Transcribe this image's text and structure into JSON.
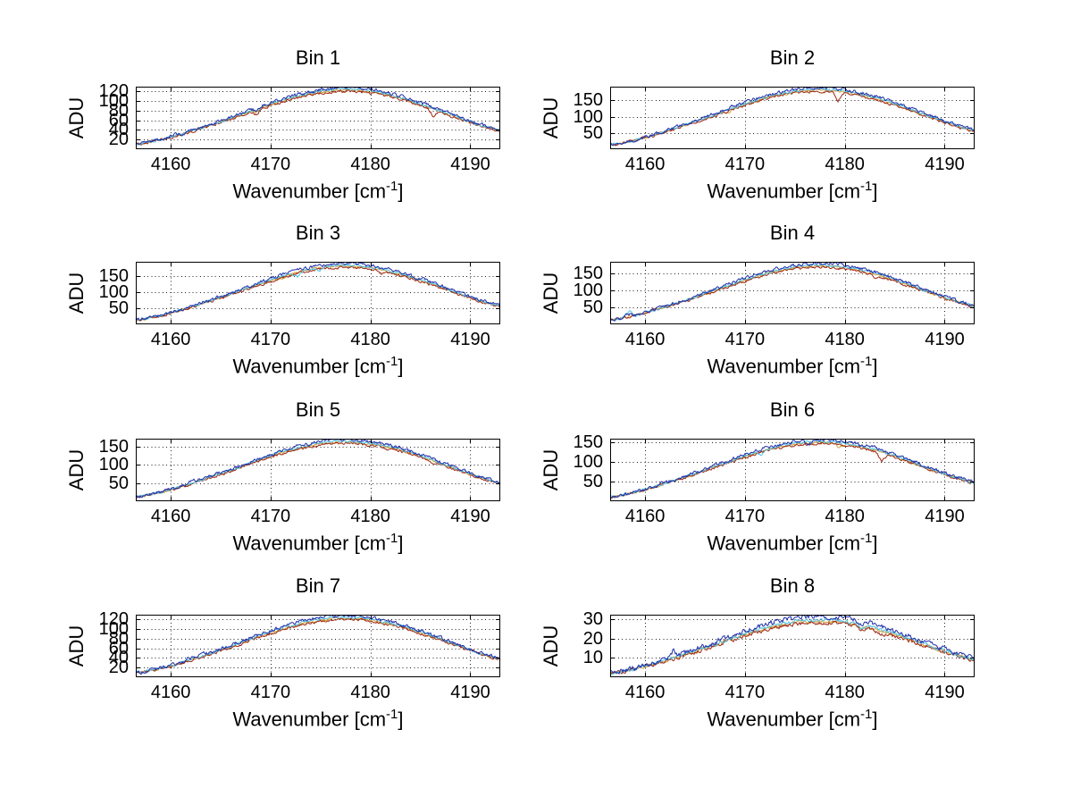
{
  "figure": {
    "background": "#ffffff",
    "text_color": "#000000",
    "axis_color": "#000000",
    "grid_style": "dotted"
  },
  "series_info": [
    {
      "name": "yellow",
      "color": "#d2a038"
    },
    {
      "name": "dark-red",
      "color": "#9e2712"
    },
    {
      "name": "cyan",
      "color": "#52c4e4"
    },
    {
      "name": "blue",
      "color": "#1e2ea8"
    }
  ],
  "default_series_scales": [
    0.982,
    0.963,
    1.0,
    1.028
  ],
  "chart_data": [
    {
      "type": "line",
      "title": "Bin 1",
      "ylabel": "ADU",
      "xlabel": "Wavenumber [cm^-1]",
      "xlabel_main": "Wavenumber [cm",
      "xlabel_sup": "-1",
      "xlabel_end": "]",
      "xlim": [
        4156.5,
        4193
      ],
      "ylim": [
        0,
        130
      ],
      "xticks": [
        4160,
        4170,
        4180,
        4190
      ],
      "yticks": [
        20,
        40,
        60,
        80,
        100,
        120
      ],
      "peak_adu": 125,
      "peak_center": 4177.5,
      "x": [
        4157,
        4159,
        4161,
        4163,
        4165,
        4167,
        4169,
        4171,
        4173,
        4175,
        4177,
        4179,
        4181,
        4183,
        4185,
        4187,
        4189,
        4191,
        4193
      ],
      "y": [
        11,
        20,
        31,
        44,
        57,
        72,
        87,
        101,
        113,
        121,
        125,
        124,
        118,
        108,
        94,
        80,
        65,
        50,
        38
      ],
      "spikes": [
        {
          "x": 4168.6,
          "series": "all",
          "dy": -5
        },
        {
          "x": 4168.6,
          "series": "dark-red",
          "dy": -5
        },
        {
          "x": 4186.3,
          "series": "dark-red",
          "dy": -13
        },
        {
          "x": 4160.3,
          "series": "blue",
          "dy": 3
        }
      ]
    },
    {
      "type": "line",
      "title": "Bin 2",
      "ylabel": "ADU",
      "xlabel": "Wavenumber [cm^-1]",
      "xlabel_main": "Wavenumber [cm",
      "xlabel_sup": "-1",
      "xlabel_end": "]",
      "xlim": [
        4156.5,
        4193
      ],
      "ylim": [
        0,
        192
      ],
      "xticks": [
        4160,
        4170,
        4180,
        4190
      ],
      "yticks": [
        50,
        100,
        150
      ],
      "peak_adu": 185,
      "peak_center": 4177.5,
      "x": [
        4157,
        4159,
        4161,
        4163,
        4165,
        4167,
        4169,
        4171,
        4173,
        4175,
        4177,
        4179,
        4181,
        4183,
        4185,
        4187,
        4189,
        4191,
        4193
      ],
      "y": [
        15,
        28,
        45,
        65,
        85,
        107,
        129,
        150,
        167,
        179,
        185,
        183,
        174,
        159,
        140,
        118,
        96,
        74,
        56
      ],
      "spikes": [
        {
          "x": 4179.3,
          "series": "dark-red",
          "dy": -26
        },
        {
          "x": 4179.3,
          "series": "blue",
          "dy": -6
        },
        {
          "x": 4168.4,
          "series": "yellow",
          "dy": -7
        },
        {
          "x": 4164.6,
          "series": "cyan",
          "dy": 4
        }
      ]
    },
    {
      "type": "line",
      "title": "Bin 3",
      "ylabel": "ADU",
      "xlabel": "Wavenumber [cm^-1]",
      "xlabel_main": "Wavenumber [cm",
      "xlabel_sup": "-1",
      "xlabel_end": "]",
      "xlim": [
        4156.5,
        4193
      ],
      "ylim": [
        0,
        196
      ],
      "xticks": [
        4160,
        4170,
        4180,
        4190
      ],
      "yticks": [
        50,
        100,
        150
      ],
      "peak_adu": 186,
      "peak_center": 4177.5,
      "x": [
        4157,
        4159,
        4161,
        4163,
        4165,
        4167,
        4169,
        4171,
        4173,
        4175,
        4177,
        4179,
        4181,
        4183,
        4185,
        4187,
        4189,
        4191,
        4193
      ],
      "y": [
        14,
        27,
        45,
        65,
        85,
        107,
        129,
        150,
        168,
        180,
        186,
        184,
        174,
        159,
        140,
        118,
        96,
        74,
        57
      ],
      "spikes": [
        {
          "x": 4172.7,
          "series": "cyan",
          "dy": -17
        },
        {
          "x": 4174.9,
          "series": "cyan",
          "dy": -11
        },
        {
          "x": 4171.1,
          "series": "yellow",
          "dy": -8
        },
        {
          "x": 4181.1,
          "series": "dark-red",
          "dy": -9
        },
        {
          "x": 4184.6,
          "series": "blue",
          "dy": -8
        }
      ]
    },
    {
      "type": "line",
      "title": "Bin 4",
      "ylabel": "ADU",
      "xlabel": "Wavenumber [cm^-1]",
      "xlabel_main": "Wavenumber [cm",
      "xlabel_sup": "-1",
      "xlabel_end": "]",
      "xlim": [
        4156.5,
        4193
      ],
      "ylim": [
        0,
        184
      ],
      "xticks": [
        4160,
        4170,
        4180,
        4190
      ],
      "yticks": [
        50,
        100,
        150
      ],
      "peak_adu": 175,
      "peak_center": 4177.5,
      "x": [
        4157,
        4159,
        4161,
        4163,
        4165,
        4167,
        4169,
        4171,
        4173,
        4175,
        4177,
        4179,
        4181,
        4183,
        4185,
        4187,
        4189,
        4191,
        4193
      ],
      "y": [
        14,
        26,
        43,
        61,
        80,
        101,
        122,
        142,
        158,
        170,
        175,
        173,
        165,
        150,
        132,
        111,
        90,
        70,
        53
      ],
      "spikes": [
        {
          "x": 4158.4,
          "series": "cyan",
          "dy": 17
        },
        {
          "x": 4158.4,
          "series": "blue",
          "dy": 7
        },
        {
          "x": 4183.1,
          "series": "dark-red",
          "dy": -6
        }
      ]
    },
    {
      "type": "line",
      "title": "Bin 5",
      "ylabel": "ADU",
      "xlabel": "Wavenumber [cm^-1]",
      "xlabel_main": "Wavenumber [cm",
      "xlabel_sup": "-1",
      "xlabel_end": "]",
      "xlim": [
        4156.5,
        4193
      ],
      "ylim": [
        0,
        171
      ],
      "xticks": [
        4160,
        4170,
        4180,
        4190
      ],
      "yticks": [
        50,
        100,
        150
      ],
      "peak_adu": 165,
      "peak_center": 4177,
      "x": [
        4157,
        4159,
        4161,
        4163,
        4165,
        4167,
        4169,
        4171,
        4173,
        4175,
        4177,
        4179,
        4181,
        4183,
        4185,
        4187,
        4189,
        4191,
        4193
      ],
      "y": [
        13,
        25,
        40,
        58,
        76,
        95,
        115,
        134,
        149,
        160,
        165,
        163,
        155,
        142,
        125,
        105,
        85,
        66,
        50
      ],
      "spikes": [
        {
          "x": 4162.1,
          "series": "blue",
          "dy": 4
        },
        {
          "x": 4181.6,
          "series": "dark-red",
          "dy": -6
        },
        {
          "x": 4186.1,
          "series": "dark-red",
          "dy": -5
        }
      ]
    },
    {
      "type": "line",
      "title": "Bin 6",
      "ylabel": "ADU",
      "xlabel": "Wavenumber [cm^-1]",
      "xlabel_main": "Wavenumber [cm",
      "xlabel_sup": "-1",
      "xlabel_end": "]",
      "xlim": [
        4156.5,
        4193
      ],
      "ylim": [
        0,
        158
      ],
      "xticks": [
        4160,
        4170,
        4180,
        4190
      ],
      "yticks": [
        50,
        100,
        150
      ],
      "peak_adu": 152,
      "peak_center": 4177.5,
      "x": [
        4157,
        4159,
        4161,
        4163,
        4165,
        4167,
        4169,
        4171,
        4173,
        4175,
        4177,
        4179,
        4181,
        4183,
        4185,
        4187,
        4189,
        4191,
        4193
      ],
      "y": [
        12,
        23,
        37,
        53,
        70,
        88,
        106,
        123,
        137,
        147,
        152,
        150,
        143,
        131,
        115,
        97,
        78,
        61,
        46
      ],
      "spikes": [
        {
          "x": 4176.4,
          "series": "blue",
          "dy": -13
        },
        {
          "x": 4179.4,
          "series": "yellow",
          "dy": -12
        },
        {
          "x": 4183.7,
          "series": "dark-red",
          "dy": -19
        },
        {
          "x": 4171.6,
          "series": "cyan",
          "dy": -10
        },
        {
          "x": 4161.9,
          "series": "blue",
          "dy": 5
        }
      ]
    },
    {
      "type": "line",
      "title": "Bin 7",
      "ylabel": "ADU",
      "xlabel": "Wavenumber [cm^-1]",
      "xlabel_main": "Wavenumber [cm",
      "xlabel_sup": "-1",
      "xlabel_end": "]",
      "xlim": [
        4156.5,
        4193
      ],
      "ylim": [
        0,
        130
      ],
      "xticks": [
        4160,
        4170,
        4180,
        4190
      ],
      "yticks": [
        20,
        40,
        60,
        80,
        100,
        120
      ],
      "peak_adu": 125,
      "peak_center": 4177.5,
      "x": [
        4157,
        4159,
        4161,
        4163,
        4165,
        4167,
        4169,
        4171,
        4173,
        4175,
        4177,
        4179,
        4181,
        4183,
        4185,
        4187,
        4189,
        4191,
        4193
      ],
      "y": [
        10,
        19,
        30,
        43,
        57,
        72,
        87,
        101,
        113,
        121,
        125,
        124,
        118,
        108,
        94,
        80,
        65,
        50,
        38
      ],
      "spikes": [
        {
          "x": 4161.8,
          "series": "blue",
          "dy": 5
        },
        {
          "x": 4163.1,
          "series": "blue",
          "dy": 4
        },
        {
          "x": 4181.2,
          "series": "all",
          "dy": -3
        }
      ]
    },
    {
      "type": "line",
      "title": "Bin 8",
      "ylabel": "ADU",
      "xlabel": "Wavenumber [cm^-1]",
      "xlabel_main": "Wavenumber [cm",
      "xlabel_sup": "-1",
      "xlabel_end": "]",
      "xlim": [
        4156.5,
        4193
      ],
      "ylim": [
        0,
        32.5
      ],
      "xticks": [
        4160,
        4170,
        4180,
        4190
      ],
      "yticks": [
        10,
        20,
        30
      ],
      "peak_adu": 30,
      "peak_center": 4176.5,
      "series_scales": [
        0.972,
        0.95,
        1.0,
        1.06
      ],
      "x": [
        4157,
        4159,
        4161,
        4163,
        4165,
        4167,
        4169,
        4171,
        4173,
        4175,
        4177,
        4179,
        4181,
        4183,
        4185,
        4187,
        4189,
        4191,
        4193
      ],
      "y": [
        2.2,
        4.5,
        7.2,
        10.3,
        13.7,
        17.3,
        20.9,
        24.3,
        27.1,
        29.1,
        30,
        29.7,
        28.2,
        25.8,
        22.6,
        19.1,
        15.5,
        12.1,
        9
      ],
      "spikes": [
        {
          "x": 4162.8,
          "series": "blue",
          "dy": 3.5
        },
        {
          "x": 4181.6,
          "series": "all",
          "dy": -1.6
        },
        {
          "x": 4183.6,
          "series": "dark-red",
          "dy": -2
        }
      ]
    }
  ]
}
